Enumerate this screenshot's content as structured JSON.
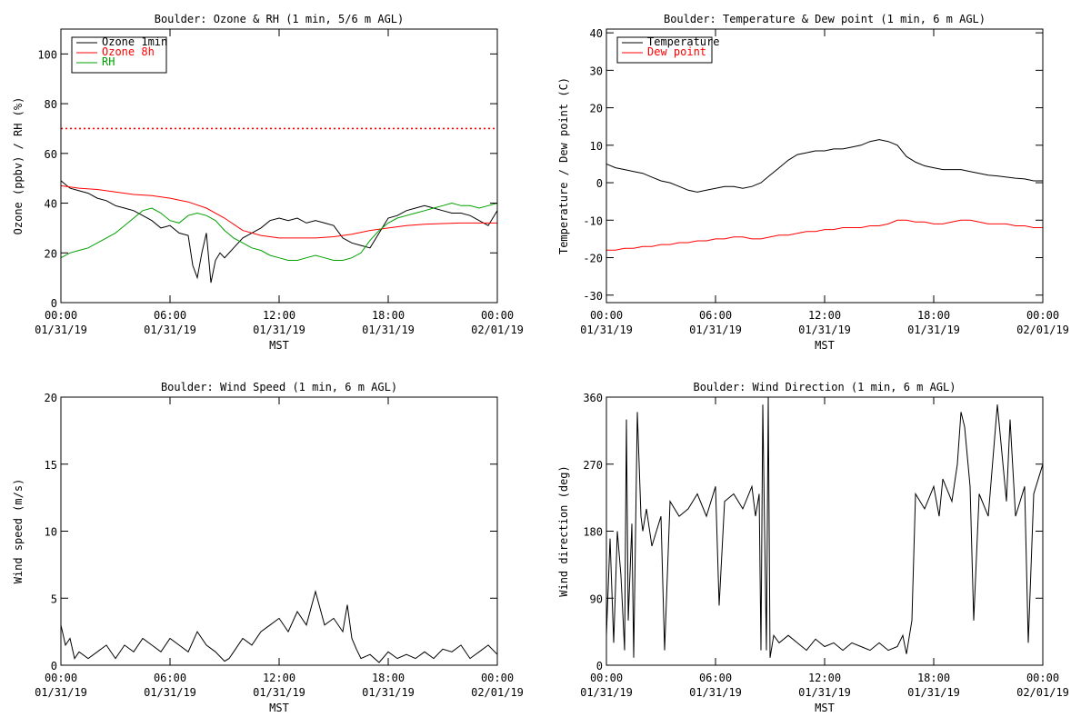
{
  "page": {
    "background": "#ffffff",
    "text_color": "#000000"
  },
  "chart_data": [
    {
      "id": "ozone",
      "type": "line",
      "title": "Boulder: Ozone & RH (1 min, 5/6 m AGL)",
      "xlabel": "MST",
      "ylabel": "Ozone (ppbv) / RH (%)",
      "xlim": [
        0,
        24
      ],
      "ylim": [
        0,
        110
      ],
      "x_ticks": [
        {
          "x": 0,
          "time": "00:00",
          "date": "01/31/19"
        },
        {
          "x": 6,
          "time": "06:00",
          "date": "01/31/19"
        },
        {
          "x": 12,
          "time": "12:00",
          "date": "01/31/19"
        },
        {
          "x": 18,
          "time": "18:00",
          "date": "01/31/19"
        },
        {
          "x": 24,
          "time": "00:00",
          "date": "02/01/19"
        }
      ],
      "y_ticks": [
        0,
        20,
        40,
        60,
        80,
        100
      ],
      "legend_position": "top-left",
      "reference_lines": [
        {
          "y": 70,
          "color": "#ff0000",
          "style": "dotted"
        }
      ],
      "series": [
        {
          "name": "Ozone 1min",
          "color": "#000000",
          "x": [
            0,
            0.5,
            1,
            1.5,
            2,
            2.5,
            3,
            3.5,
            4,
            4.5,
            5,
            5.5,
            6,
            6.5,
            7,
            7.25,
            7.5,
            7.75,
            8,
            8.25,
            8.5,
            8.75,
            9,
            9.5,
            10,
            10.5,
            11,
            11.5,
            12,
            12.5,
            13,
            13.5,
            14,
            14.5,
            15,
            15.5,
            16,
            16.5,
            17,
            17.5,
            18,
            18.5,
            19,
            19.5,
            20,
            20.5,
            21,
            21.5,
            22,
            22.5,
            23,
            23.5,
            24
          ],
          "y": [
            49,
            46,
            45,
            44,
            42,
            41,
            39,
            38,
            37,
            35,
            33,
            30,
            31,
            28,
            27,
            15,
            10,
            20,
            28,
            8,
            17,
            20,
            18,
            22,
            26,
            28,
            30,
            33,
            34,
            33,
            34,
            32,
            33,
            32,
            31,
            26,
            24,
            23,
            22,
            28,
            34,
            35,
            37,
            38,
            39,
            38,
            37,
            36,
            36,
            35,
            33,
            31,
            37
          ]
        },
        {
          "name": "Ozone 8h",
          "color": "#ff0000",
          "x": [
            0,
            1,
            2,
            3,
            4,
            5,
            6,
            7,
            8,
            9,
            10,
            11,
            12,
            13,
            14,
            15,
            16,
            17,
            18,
            19,
            20,
            21,
            22,
            23,
            24
          ],
          "y": [
            47,
            46,
            45.5,
            44.5,
            43.5,
            43,
            42,
            40.5,
            38,
            34,
            29,
            27,
            26,
            26,
            26,
            26.5,
            27.5,
            29,
            30,
            31,
            31.5,
            31.8,
            32,
            32,
            32
          ]
        },
        {
          "name": "RH",
          "color": "#00a000",
          "x": [
            0,
            0.5,
            1,
            1.5,
            2,
            2.5,
            3,
            3.5,
            4,
            4.5,
            5,
            5.5,
            6,
            6.5,
            7,
            7.5,
            8,
            8.5,
            9,
            9.5,
            10,
            10.5,
            11,
            11.5,
            12,
            12.5,
            13,
            13.5,
            14,
            14.5,
            15,
            15.5,
            16,
            16.5,
            17,
            17.5,
            18,
            18.5,
            19,
            19.5,
            20,
            20.5,
            21,
            21.5,
            22,
            22.5,
            23,
            23.5,
            24
          ],
          "y": [
            18,
            20,
            21,
            22,
            24,
            26,
            28,
            31,
            34,
            37,
            38,
            36,
            33,
            32,
            35,
            36,
            35,
            33,
            29,
            26,
            24,
            22,
            21,
            19,
            18,
            17,
            17,
            18,
            19,
            18,
            17,
            17,
            18,
            20,
            25,
            29,
            32,
            34,
            35,
            36,
            37,
            38,
            39,
            40,
            39,
            39,
            38,
            39,
            40
          ]
        }
      ]
    },
    {
      "id": "temperature",
      "type": "line",
      "title": "Boulder: Temperature & Dew point (1 min, 6 m AGL)",
      "xlabel": "MST",
      "ylabel": "Temperature / Dew point (C)",
      "xlim": [
        0,
        24
      ],
      "ylim": [
        -32,
        41
      ],
      "x_ticks": [
        {
          "x": 0,
          "time": "00:00",
          "date": "01/31/19"
        },
        {
          "x": 6,
          "time": "06:00",
          "date": "01/31/19"
        },
        {
          "x": 12,
          "time": "12:00",
          "date": "01/31/19"
        },
        {
          "x": 18,
          "time": "18:00",
          "date": "01/31/19"
        },
        {
          "x": 24,
          "time": "00:00",
          "date": "02/01/19"
        }
      ],
      "y_ticks": [
        -30,
        -20,
        -10,
        0,
        10,
        20,
        30,
        40
      ],
      "legend_position": "top-left",
      "series": [
        {
          "name": "Temperature",
          "color": "#000000",
          "x": [
            0,
            0.5,
            1,
            1.5,
            2,
            2.5,
            3,
            3.5,
            4,
            4.5,
            5,
            5.5,
            6,
            6.5,
            7,
            7.5,
            8,
            8.5,
            9,
            9.5,
            10,
            10.5,
            11,
            11.5,
            12,
            12.5,
            13,
            13.5,
            14,
            14.5,
            15,
            15.5,
            16,
            16.5,
            17,
            17.5,
            18,
            18.5,
            19,
            19.5,
            20,
            20.5,
            21,
            21.5,
            22,
            22.5,
            23,
            23.5,
            24
          ],
          "y": [
            5,
            4,
            3.5,
            3,
            2.5,
            1.5,
            0.5,
            0,
            -1,
            -2,
            -2.5,
            -2,
            -1.5,
            -1,
            -1,
            -1.5,
            -1,
            0,
            2,
            4,
            6,
            7.5,
            8,
            8.5,
            8.5,
            9,
            9,
            9.5,
            10,
            11,
            11.5,
            11,
            10,
            7,
            5.5,
            4.5,
            4,
            3.5,
            3.5,
            3.5,
            3,
            2.5,
            2,
            1.8,
            1.5,
            1.2,
            1,
            0.5,
            0.5
          ]
        },
        {
          "name": "Dew point",
          "color": "#ff0000",
          "x": [
            0,
            0.5,
            1,
            1.5,
            2,
            2.5,
            3,
            3.5,
            4,
            4.5,
            5,
            5.5,
            6,
            6.5,
            7,
            7.5,
            8,
            8.5,
            9,
            9.5,
            10,
            10.5,
            11,
            11.5,
            12,
            12.5,
            13,
            13.5,
            14,
            14.5,
            15,
            15.5,
            16,
            16.5,
            17,
            17.5,
            18,
            18.5,
            19,
            19.5,
            20,
            20.5,
            21,
            21.5,
            22,
            22.5,
            23,
            23.5,
            24
          ],
          "y": [
            -18,
            -18,
            -17.5,
            -17.5,
            -17,
            -17,
            -16.5,
            -16.5,
            -16,
            -16,
            -15.5,
            -15.5,
            -15,
            -15,
            -14.5,
            -14.5,
            -15,
            -15,
            -14.5,
            -14,
            -14,
            -13.5,
            -13,
            -13,
            -12.5,
            -12.5,
            -12,
            -12,
            -12,
            -11.5,
            -11.5,
            -11,
            -10,
            -10,
            -10.5,
            -10.5,
            -11,
            -11,
            -10.5,
            -10,
            -10,
            -10.5,
            -11,
            -11,
            -11,
            -11.5,
            -11.5,
            -12,
            -12
          ]
        }
      ]
    },
    {
      "id": "wind_speed",
      "type": "line",
      "title": "Boulder: Wind Speed (1 min, 6 m AGL)",
      "xlabel": "MST",
      "ylabel": "Wind speed (m/s)",
      "xlim": [
        0,
        24
      ],
      "ylim": [
        0,
        20
      ],
      "x_ticks": [
        {
          "x": 0,
          "time": "00:00",
          "date": "01/31/19"
        },
        {
          "x": 6,
          "time": "06:00",
          "date": "01/31/19"
        },
        {
          "x": 12,
          "time": "12:00",
          "date": "01/31/19"
        },
        {
          "x": 18,
          "time": "18:00",
          "date": "01/31/19"
        },
        {
          "x": 24,
          "time": "00:00",
          "date": "02/01/19"
        }
      ],
      "y_ticks": [
        0,
        5,
        10,
        15,
        20
      ],
      "series": [
        {
          "name": "Wind speed",
          "color": "#000000",
          "x": [
            0,
            0.25,
            0.5,
            0.75,
            1,
            1.5,
            2,
            2.5,
            3,
            3.5,
            4,
            4.5,
            5,
            5.5,
            6,
            6.5,
            7,
            7.5,
            8,
            8.5,
            9,
            9.25,
            9.5,
            10,
            10.5,
            11,
            11.5,
            12,
            12.5,
            13,
            13.5,
            14,
            14.5,
            15,
            15.5,
            15.75,
            16,
            16.25,
            16.5,
            17,
            17.5,
            18,
            18.5,
            19,
            19.5,
            20,
            20.5,
            21,
            21.5,
            22,
            22.5,
            23,
            23.5,
            24
          ],
          "y": [
            3,
            1.5,
            2,
            0.5,
            1,
            0.5,
            1,
            1.5,
            0.5,
            1.5,
            1,
            2,
            1.5,
            1,
            2,
            1.5,
            1,
            2.5,
            1.5,
            1,
            0.3,
            0.5,
            1,
            2,
            1.5,
            2.5,
            3,
            3.5,
            2.5,
            4,
            3,
            5.5,
            3,
            3.5,
            2.5,
            4.5,
            2,
            1.2,
            0.5,
            0.8,
            0.2,
            1,
            0.5,
            0.8,
            0.5,
            1,
            0.5,
            1.2,
            1,
            1.5,
            0.5,
            1,
            1.5,
            0.8
          ]
        }
      ]
    },
    {
      "id": "wind_direction",
      "type": "line",
      "title": "Boulder: Wind Direction (1 min, 6 m AGL)",
      "xlabel": "MST",
      "ylabel": "Wind direction (deg)",
      "xlim": [
        0,
        24
      ],
      "ylim": [
        0,
        360
      ],
      "x_ticks": [
        {
          "x": 0,
          "time": "00:00",
          "date": "01/31/19"
        },
        {
          "x": 6,
          "time": "06:00",
          "date": "01/31/19"
        },
        {
          "x": 12,
          "time": "12:00",
          "date": "01/31/19"
        },
        {
          "x": 18,
          "time": "18:00",
          "date": "01/31/19"
        },
        {
          "x": 24,
          "time": "00:00",
          "date": "02/01/19"
        }
      ],
      "y_ticks": [
        0,
        90,
        180,
        270,
        360
      ],
      "series": [
        {
          "name": "Wind direction",
          "color": "#000000",
          "x": [
            0,
            0.2,
            0.4,
            0.6,
            0.8,
            1,
            1.1,
            1.2,
            1.4,
            1.5,
            1.7,
            1.9,
            2,
            2.2,
            2.5,
            3,
            3.2,
            3.5,
            4,
            4.5,
            5,
            5.5,
            6,
            6.2,
            6.5,
            7,
            7.5,
            8,
            8.2,
            8.4,
            8.5,
            8.6,
            8.7,
            8.8,
            8.9,
            9,
            9.2,
            9.5,
            10,
            10.5,
            11,
            11.5,
            12,
            12.5,
            13,
            13.5,
            14,
            14.5,
            15,
            15.5,
            16,
            16.3,
            16.5,
            16.8,
            17,
            17.5,
            18,
            18.3,
            18.5,
            19,
            19.3,
            19.5,
            19.7,
            20,
            20.2,
            20.5,
            21,
            21.5,
            22,
            22.2,
            22.5,
            23,
            23.2,
            23.5,
            24
          ],
          "y": [
            40,
            170,
            30,
            180,
            120,
            20,
            330,
            60,
            190,
            10,
            340,
            200,
            180,
            210,
            160,
            200,
            20,
            220,
            200,
            210,
            230,
            200,
            240,
            80,
            220,
            230,
            210,
            240,
            200,
            230,
            20,
            350,
            180,
            20,
            360,
            10,
            40,
            30,
            40,
            30,
            20,
            35,
            25,
            30,
            20,
            30,
            25,
            20,
            30,
            20,
            25,
            40,
            15,
            60,
            230,
            210,
            240,
            200,
            250,
            220,
            270,
            340,
            320,
            240,
            60,
            230,
            200,
            350,
            220,
            330,
            200,
            240,
            30,
            230,
            270
          ]
        }
      ]
    }
  ]
}
